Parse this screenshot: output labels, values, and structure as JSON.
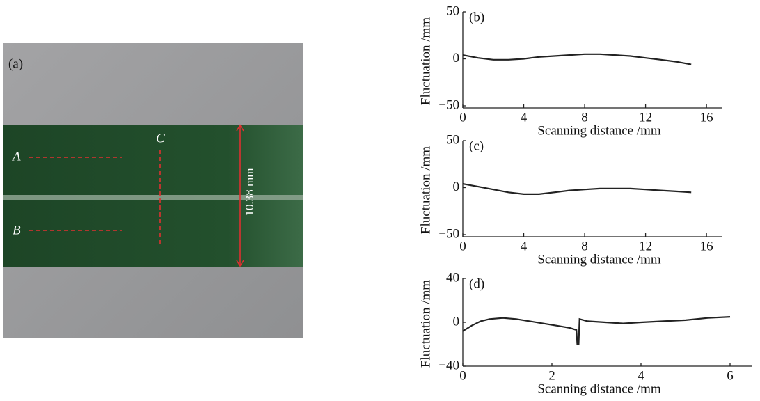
{
  "photo": {
    "label": "(a)",
    "line_a": "A",
    "line_b": "B",
    "line_c": "C",
    "width_label": "10.38 mm"
  },
  "chart_data": [
    {
      "type": "line",
      "panel_label": "(b)",
      "xlabel": "Scanning distance /mm",
      "ylabel": "Fluctuation /mm",
      "xlim": [
        0,
        17
      ],
      "xticks": [
        0,
        4,
        8,
        12,
        16
      ],
      "ylim": [
        -50,
        50
      ],
      "yticks": [
        {
          "value": -50,
          "label": "−50"
        },
        0,
        50
      ],
      "color": "#222",
      "x": [
        0,
        1,
        2,
        3,
        4,
        5,
        6,
        7,
        8,
        9,
        10,
        11,
        12,
        13,
        14,
        15
      ],
      "values": [
        4,
        1,
        -1,
        -1,
        0,
        2,
        3,
        4,
        5,
        5,
        4,
        3,
        1,
        -1,
        -3,
        -6
      ]
    },
    {
      "type": "line",
      "panel_label": "(c)",
      "xlabel": "Scanning distance /mm",
      "ylabel": "Fluctuation /mm",
      "xlim": [
        0,
        17
      ],
      "xticks": [
        0,
        4,
        8,
        12,
        16
      ],
      "ylim": [
        -50,
        50
      ],
      "yticks": [
        {
          "value": -50,
          "label": "−50"
        },
        0,
        50
      ],
      "color": "#222",
      "x": [
        0,
        1,
        2,
        3,
        4,
        5,
        6,
        7,
        8,
        9,
        10,
        11,
        12,
        13,
        14,
        15
      ],
      "values": [
        4,
        1,
        -2,
        -5,
        -7,
        -7,
        -5,
        -3,
        -2,
        -1,
        -1,
        -1,
        -2,
        -3,
        -4,
        -5
      ]
    },
    {
      "type": "line",
      "panel_label": "(d)",
      "xlabel": "Scanning distance /mm",
      "ylabel": "Fluctuation /mm",
      "xlim": [
        0,
        6.5
      ],
      "xticks": [
        0,
        2,
        4,
        6
      ],
      "ylim": [
        -40,
        40
      ],
      "yticks": [
        {
          "value": -40,
          "label": "−40"
        },
        0,
        40
      ],
      "color": "#222",
      "x": [
        0,
        0.2,
        0.4,
        0.6,
        0.9,
        1.2,
        1.5,
        1.8,
        2.1,
        2.4,
        2.55,
        2.57,
        2.6,
        2.62,
        2.8,
        3.2,
        3.6,
        4,
        4.5,
        5,
        5.5,
        6
      ],
      "values": [
        -8,
        -3,
        1,
        3,
        4,
        3,
        1,
        -1,
        -3,
        -5,
        -7,
        -20,
        -20,
        3,
        1,
        0,
        -1,
        0,
        1,
        2,
        4,
        5
      ]
    }
  ]
}
